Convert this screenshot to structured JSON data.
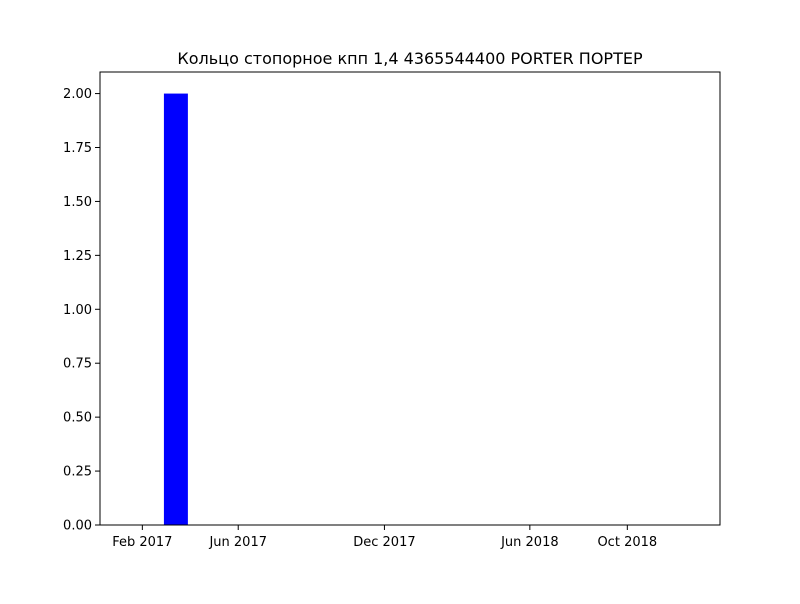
{
  "chart_data": {
    "type": "bar",
    "title": "Кольцо стопорное кпп 1,4 4365544400 PORTER ПОРТЕР",
    "xlabel": "",
    "ylabel": "",
    "x_scale": "date",
    "xlim": [
      "2016-12-10",
      "2019-01-25"
    ],
    "ylim": [
      0,
      2.1
    ],
    "bar_width_days": 30,
    "x_ticks": [
      {
        "date": "2017-02-01",
        "label": "Feb 2017"
      },
      {
        "date": "2017-06-01",
        "label": "Jun 2017"
      },
      {
        "date": "2017-12-01",
        "label": "Dec 2017"
      },
      {
        "date": "2018-06-01",
        "label": "Jun 2018"
      },
      {
        "date": "2018-10-01",
        "label": "Oct 2018"
      }
    ],
    "y_ticks": [
      {
        "value": 0.0,
        "label": "0.00"
      },
      {
        "value": 0.25,
        "label": "0.25"
      },
      {
        "value": 0.5,
        "label": "0.50"
      },
      {
        "value": 0.75,
        "label": "0.75"
      },
      {
        "value": 1.0,
        "label": "1.00"
      },
      {
        "value": 1.25,
        "label": "1.25"
      },
      {
        "value": 1.5,
        "label": "1.50"
      },
      {
        "value": 1.75,
        "label": "1.75"
      },
      {
        "value": 2.0,
        "label": "2.00"
      }
    ],
    "grid": false,
    "series": [
      {
        "color": "#0000ff",
        "points": [
          {
            "date": "2017-03-15",
            "value": 2
          }
        ]
      }
    ]
  }
}
